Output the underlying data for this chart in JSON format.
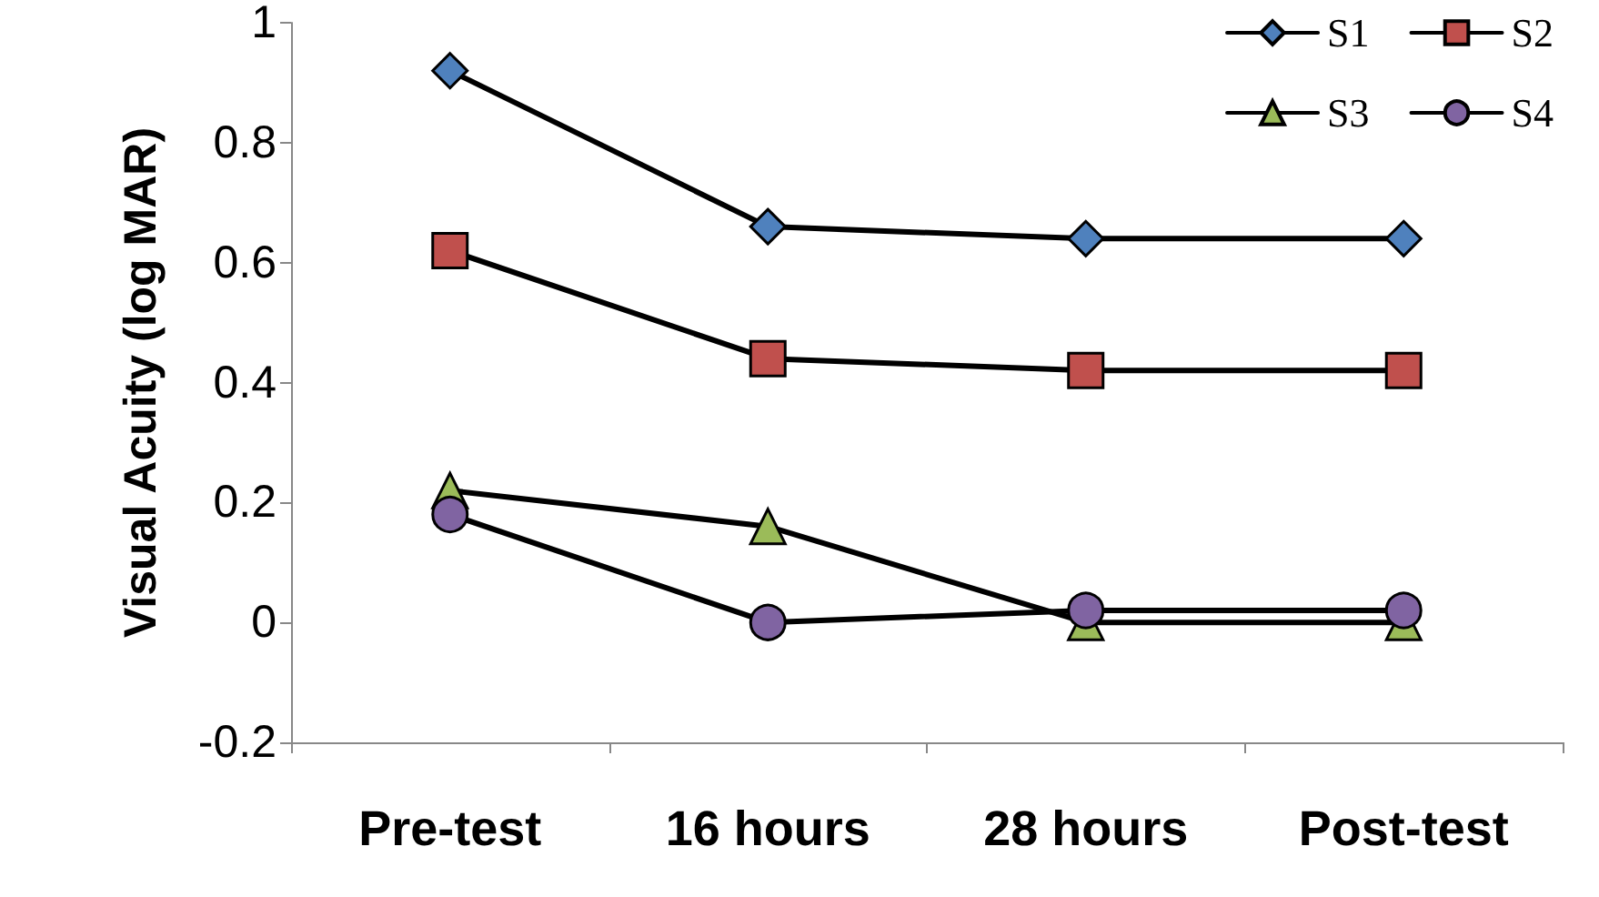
{
  "chart_data": {
    "type": "line",
    "ylabel": "Visual Acuity (log MAR)",
    "categories": [
      "Pre-test",
      "16 hours",
      "28 hours",
      "Post-test"
    ],
    "series": [
      {
        "name": "S1",
        "color": "#4f81bd",
        "marker": "diamond",
        "values": [
          0.92,
          0.66,
          0.64,
          0.64
        ]
      },
      {
        "name": "S2",
        "color": "#c0504d",
        "marker": "square",
        "values": [
          0.62,
          0.44,
          0.42,
          0.42
        ]
      },
      {
        "name": "S3",
        "color": "#9bbb59",
        "marker": "triangle",
        "values": [
          0.22,
          0.16,
          0,
          0
        ]
      },
      {
        "name": "S4",
        "color": "#8064a2",
        "marker": "circle",
        "values": [
          0.18,
          0,
          0.02,
          0.02
        ]
      }
    ],
    "ylim": [
      -0.2,
      1
    ],
    "yticks": [
      -0.2,
      0,
      0.2,
      0.4,
      0.6,
      0.8,
      1
    ],
    "grid": false,
    "legend": "top right",
    "line_style": "solid"
  }
}
